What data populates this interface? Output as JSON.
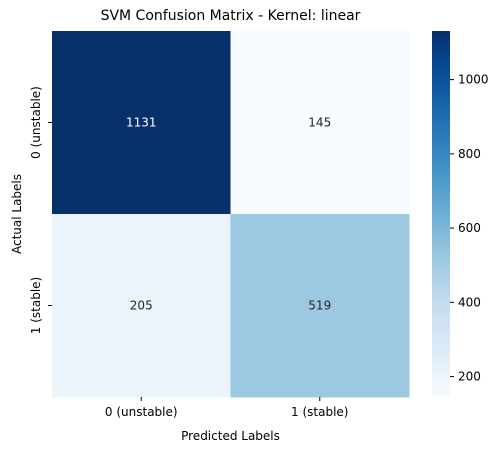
{
  "chart_data": {
    "type": "heatmap",
    "title": "SVM Confusion Matrix - Kernel: linear",
    "xlabel": "Predicted Labels",
    "ylabel": "Actual Labels",
    "x_categories": [
      "0 (unstable)",
      "1 (stable)"
    ],
    "y_categories": [
      "0 (unstable)",
      "1 (stable)"
    ],
    "values": [
      [
        1131,
        145
      ],
      [
        205,
        519
      ]
    ],
    "colormap": "Blues",
    "colorbar": {
      "range": [
        145,
        1131
      ],
      "ticks": [
        200,
        400,
        600,
        800,
        1000
      ]
    }
  }
}
